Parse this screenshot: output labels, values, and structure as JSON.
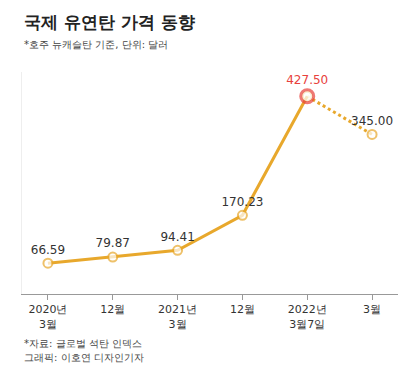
{
  "chart_data": {
    "type": "line",
    "title": "국제 유연탄 가격 동향",
    "subtitle": "*호주 뉴캐슬탄 기준, 단위: 달러",
    "annotations": [
      "*자료: 글로벌 석탄 인덱스",
      "그래픽: 이호연 디자인기자"
    ],
    "categories": [
      "2020년 3월",
      "12월",
      "2021년 3월",
      "12월",
      "2022년 3월7일",
      "3월"
    ],
    "series": [
      {
        "values": [
          66.59,
          79.87,
          94.41,
          170.23,
          427.5,
          null
        ],
        "value_labels": [
          "66.59",
          "79.87",
          "94.41",
          "170.23",
          "427.50",
          null
        ],
        "color": "#e8a82c",
        "colors": [
          "#e8a82c",
          "#e8a82c",
          "#e8a82c",
          "#e8a82c",
          "#e8413c",
          "#e8a82c"
        ],
        "line_style": "solid",
        "marker": "circle"
      },
      {
        "values": [
          null,
          null,
          null,
          null,
          427.5,
          345.0
        ],
        "value_labels": [
          null,
          null,
          null,
          null,
          null,
          "345.00"
        ],
        "color": "#e8a82c",
        "line_style": "dot",
        "marker": "circle"
      }
    ],
    "ylim": [
      0,
      480
    ],
    "data_labels": true,
    "tick_labels": "x",
    "grid": false
  }
}
